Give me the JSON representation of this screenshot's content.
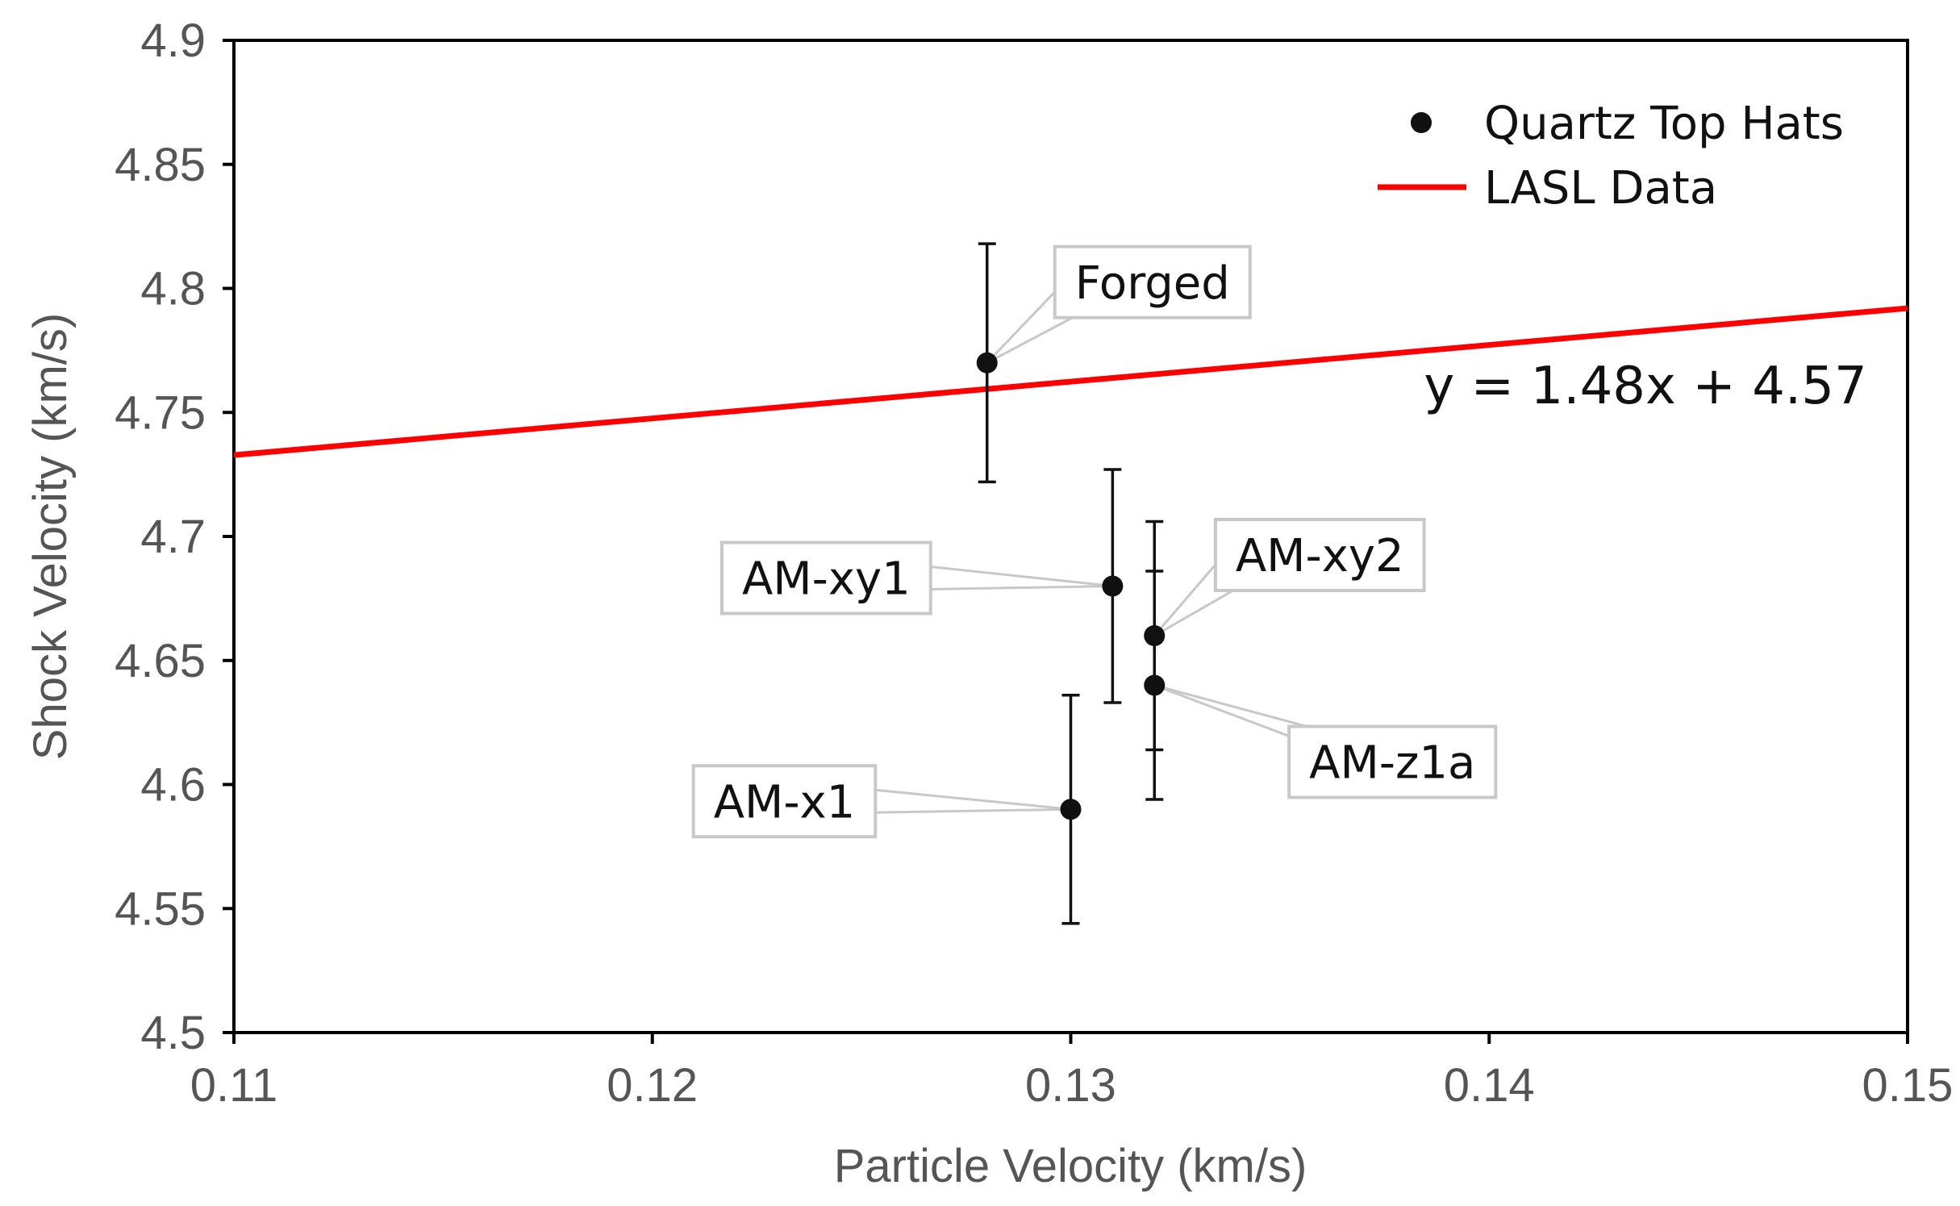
{
  "chart_data": {
    "type": "scatter",
    "xlabel": "Particle Velocity (km/s)",
    "ylabel": "Shock Velocity (km/s)",
    "xlim": [
      0.11,
      0.15
    ],
    "ylim": [
      4.5,
      4.9
    ],
    "xticks": [
      0.11,
      0.12,
      0.13,
      0.14,
      0.15
    ],
    "xtick_labels": [
      "0.11",
      "0.12",
      "0.13",
      "0.14",
      "0.15"
    ],
    "yticks": [
      4.5,
      4.55,
      4.6,
      4.65,
      4.7,
      4.75,
      4.8,
      4.85,
      4.9
    ],
    "ytick_labels": [
      "4.5",
      "4.55",
      "4.6",
      "4.65",
      "4.7",
      "4.75",
      "4.8",
      "4.85",
      "4.9"
    ],
    "grid": false,
    "legend_position": "top-right",
    "series": [
      {
        "name": "Quartz Top Hats",
        "kind": "scatter",
        "color": "#000000",
        "points": [
          {
            "label": "Forged",
            "x": 0.128,
            "y": 4.77,
            "err_low": 4.722,
            "err_high": 4.818,
            "label_side": "upper-right"
          },
          {
            "label": "AM-xy1",
            "x": 0.131,
            "y": 4.68,
            "err_low": 4.633,
            "err_high": 4.727,
            "label_side": "left"
          },
          {
            "label": "AM-xy2",
            "x": 0.132,
            "y": 4.66,
            "err_low": 4.614,
            "err_high": 4.706,
            "label_side": "upper-right"
          },
          {
            "label": "AM-z1a",
            "x": 0.132,
            "y": 4.64,
            "err_low": 4.594,
            "err_high": 4.686,
            "label_side": "lower-right"
          },
          {
            "label": "AM-x1",
            "x": 0.13,
            "y": 4.59,
            "err_low": 4.544,
            "err_high": 4.636,
            "label_side": "left"
          }
        ]
      },
      {
        "name": "LASL Data",
        "kind": "line",
        "color": "#ff0000",
        "slope": 1.48,
        "intercept": 4.57
      }
    ],
    "annotations": [
      {
        "text": "y = 1.48x + 4.57",
        "x": 0.1425,
        "y": 4.758
      }
    ]
  }
}
